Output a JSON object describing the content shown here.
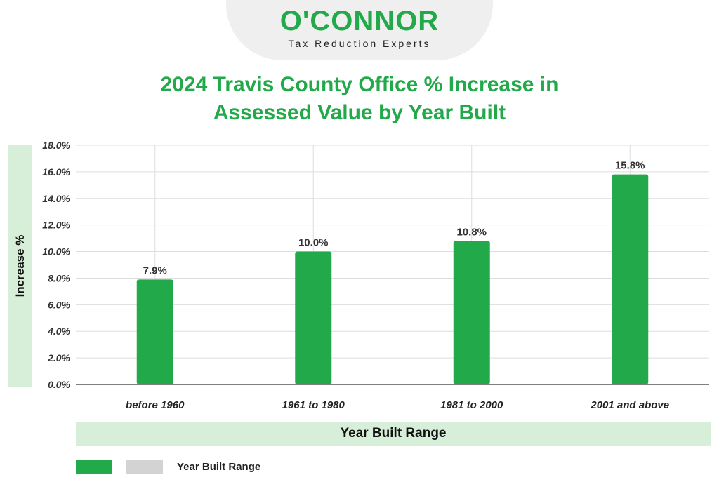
{
  "logo": {
    "wordmark": "O'CONNOR",
    "tagline": "Tax Reduction Experts"
  },
  "colors": {
    "brand_green": "#22a94a",
    "bar": "#22a94a",
    "band": "#d7efd9",
    "legend_gray": "#d3d3d3"
  },
  "chart_data": {
    "type": "bar",
    "title_line1": "2024 Travis County Office % Increase in",
    "title_line2": "Assessed Value by Year Built",
    "xlabel": "Year Built Range",
    "ylabel": "Increase %",
    "categories": [
      "before 1960",
      "1961 to 1980",
      "1981 to 2000",
      "2001 and above"
    ],
    "values": [
      7.9,
      10.0,
      10.8,
      15.8
    ],
    "data_labels": [
      "7.9%",
      "10.0%",
      "10.8%",
      "15.8%"
    ],
    "yticks": [
      "0.0%",
      "2.0%",
      "4.0%",
      "6.0%",
      "8.0%",
      "10.0%",
      "12.0%",
      "14.0%",
      "16.0%",
      "18.0%"
    ],
    "ylim": [
      0,
      18
    ],
    "grid": true,
    "legend": {
      "placement": "bottom-left",
      "label": "Year Built Range"
    }
  }
}
